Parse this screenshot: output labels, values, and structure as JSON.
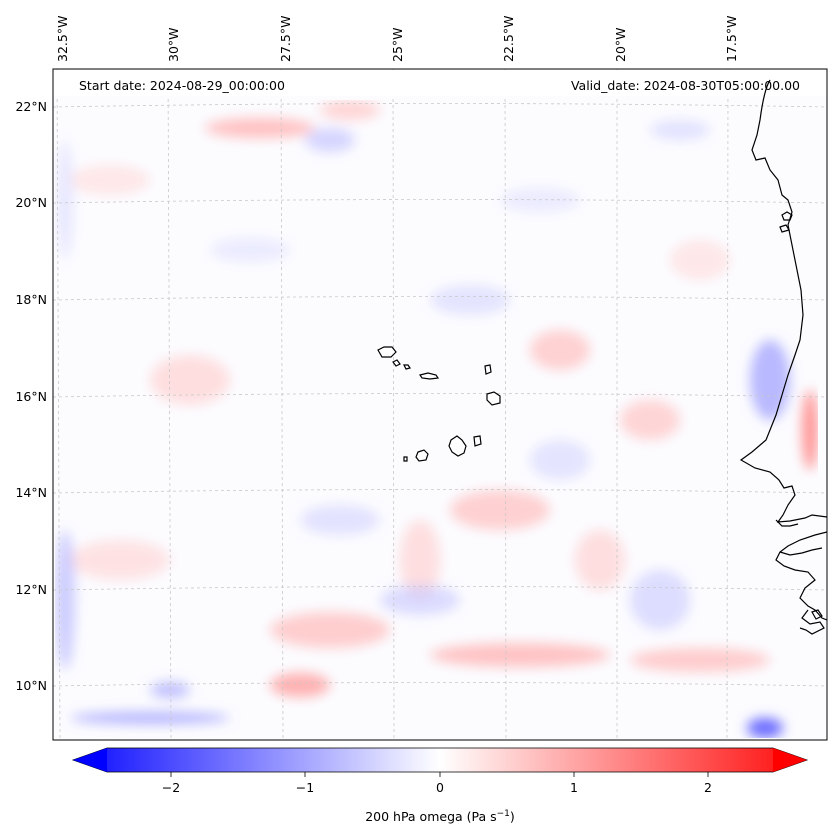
{
  "header": {
    "start_date": "Start date: 2024-08-29_00:00:00",
    "valid_date": "Valid_date: 2024-08-30T05:00:00.00"
  },
  "map": {
    "lon_labels": [
      "32.5°W",
      "30°W",
      "27.5°W",
      "25°W",
      "22.5°W",
      "20°W",
      "17.5°W"
    ],
    "lat_labels": [
      "22°N",
      "20°N",
      "18°N",
      "16°N",
      "14°N",
      "12°N",
      "10°N"
    ],
    "gridlines": true,
    "colormap": "bwr",
    "coastline_color": "#000000"
  },
  "colorbar": {
    "ticks": [
      "−2",
      "−1",
      "0",
      "1",
      "2"
    ],
    "label_main": "200 hPa omega (Pa s",
    "label_sup": "−1",
    "label_close": ")",
    "colors": {
      "negative": "#0000ff",
      "zero": "#ffffff",
      "positive": "#ff0000"
    },
    "extend": "both"
  }
}
